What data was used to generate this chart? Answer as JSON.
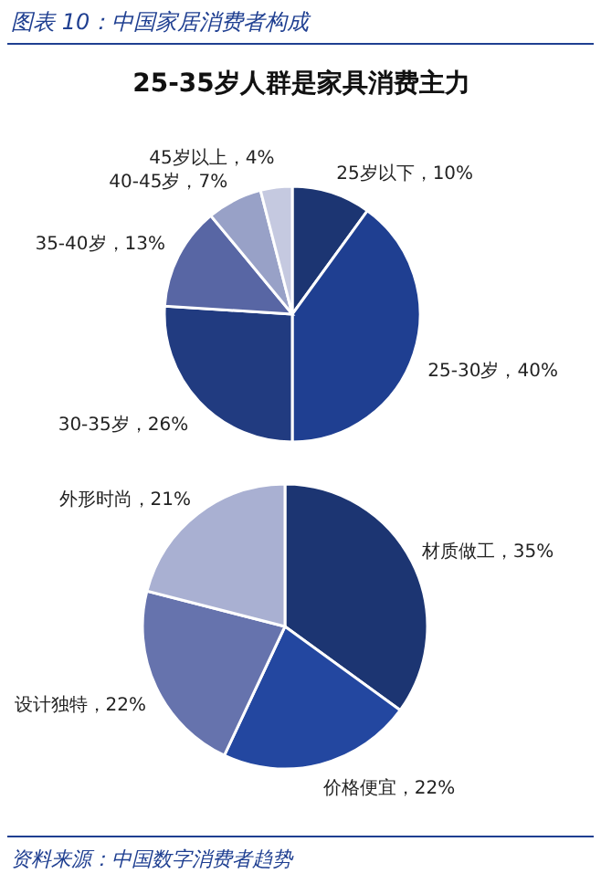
{
  "chart_data": [
    {
      "type": "pie",
      "title": "图表 10：中国家居消费者构成",
      "subtitle": "25-35岁人群是家具消费主力",
      "categories": [
        "25岁以下",
        "25-30岁",
        "30-35岁",
        "35-40岁",
        "40-45岁",
        "45岁以上"
      ],
      "values": [
        10,
        40,
        26,
        13,
        7,
        4
      ],
      "value_labels": [
        "10%",
        "40%",
        "26%",
        "13%",
        "7%",
        "4%"
      ],
      "colors": [
        "#1c3572",
        "#1f3f91",
        "#213b80",
        "#5866a4",
        "#98a1c7",
        "#c5c9e0"
      ]
    },
    {
      "type": "pie",
      "categories": [
        "材质做工",
        "价格便宜",
        "设计独特",
        "外形时尚"
      ],
      "values": [
        35,
        22,
        22,
        21
      ],
      "value_labels": [
        "35%",
        "22%",
        "22%",
        "21%"
      ],
      "colors": [
        "#1c3572",
        "#2347a0",
        "#6673ad",
        "#a9b0d2"
      ],
      "annotations": [
        "资料来源：中国数字消费者趋势"
      ]
    }
  ]
}
